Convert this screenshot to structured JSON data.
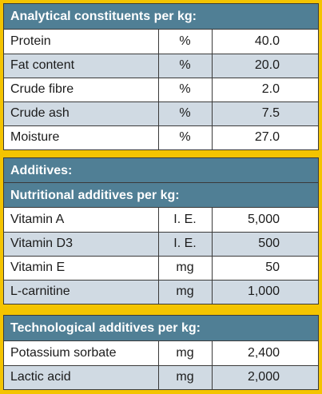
{
  "analytical": {
    "title": "Analytical constituents per kg:",
    "rows": [
      {
        "name": "Protein",
        "unit": "%",
        "value": "40.0"
      },
      {
        "name": "Fat content",
        "unit": "%",
        "value": "20.0"
      },
      {
        "name": "Crude fibre",
        "unit": "%",
        "value": "2.0"
      },
      {
        "name": "Crude ash",
        "unit": "%",
        "value": "7.5"
      },
      {
        "name": "Moisture",
        "unit": "%",
        "value": "27.0"
      }
    ]
  },
  "additives": {
    "title": "Additives:",
    "nutritional": {
      "title": "Nutritional additives per kg:",
      "rows": [
        {
          "name": "Vitamin A",
          "unit": "I. E.",
          "value": "5,000"
        },
        {
          "name": "Vitamin D3",
          "unit": "I. E.",
          "value": "500"
        },
        {
          "name": "Vitamin E",
          "unit": "mg",
          "value": "50"
        },
        {
          "name": "L-carnitine",
          "unit": "mg",
          "value": "1,000"
        }
      ]
    }
  },
  "technological": {
    "title": "Technological additives per kg:",
    "rows": [
      {
        "name": "Potassium sorbate",
        "unit": "mg",
        "value": "2,400"
      },
      {
        "name": "Lactic acid",
        "unit": "mg",
        "value": "2,000"
      }
    ]
  }
}
